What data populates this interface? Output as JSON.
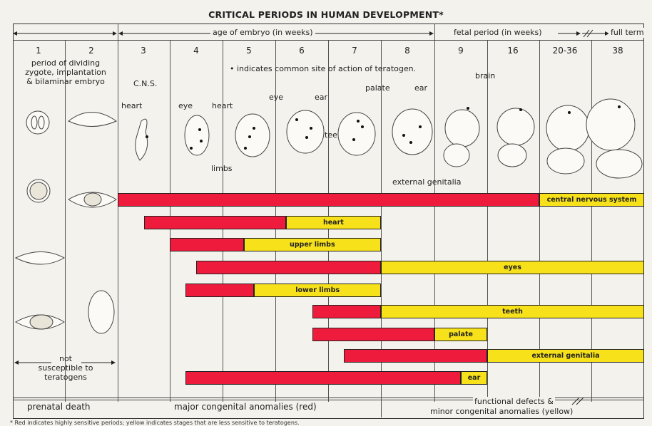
{
  "title": "CRITICAL PERIODS IN HUMAN DEVELOPMENT*",
  "header": {
    "age_of_embryo": "age of embryo (in weeks)",
    "fetal_period": "fetal period (in weeks)",
    "full_term": "full term"
  },
  "weeks": [
    "1",
    "2",
    "3",
    "4",
    "5",
    "6",
    "7",
    "8",
    "9",
    "16",
    "20-36",
    "38"
  ],
  "early_note": "period of dividing\nzygote, implantation\n& bilaminar embryo",
  "teratogen_note": "• indicates common site of action of teratogen.",
  "organ_labels": {
    "cns": "C.N.S.",
    "heart3": "heart",
    "eye4": "eye",
    "heart5": "heart",
    "eye5": "eye",
    "ear6": "ear",
    "teeth": "teeth",
    "palate": "palate",
    "ear8": "ear",
    "brain": "brain",
    "limbs": "limbs",
    "external_genitalia": "external genitalia"
  },
  "not_susceptible": "not\nsusceptible to\nteratogens",
  "bars": [
    {
      "label": "central nervous system",
      "red_start_week": 3,
      "red_end_week": "20-36",
      "yellow_end_week": 38
    },
    {
      "label": "heart",
      "red_start_week": 3.5,
      "red_end_week": 6.2,
      "yellow_end_week": 8
    },
    {
      "label": "upper limbs",
      "red_start_week": 4,
      "red_end_week": 5.4,
      "yellow_end_week": 8
    },
    {
      "label": "eyes",
      "red_start_week": 4.5,
      "red_end_week": 8,
      "yellow_end_week": 38
    },
    {
      "label": "lower limbs",
      "red_start_week": 4.3,
      "red_end_week": 5.6,
      "yellow_end_week": 8
    },
    {
      "label": "teeth",
      "red_start_week": 6.7,
      "red_end_week": 8,
      "yellow_end_week": 38
    },
    {
      "label": "palate",
      "red_start_week": 6.7,
      "red_end_week": 9,
      "yellow_end_week": 16
    },
    {
      "label": "external genitalia",
      "red_start_week": 7.3,
      "red_end_week": 16,
      "yellow_end_week": 38
    },
    {
      "label": "ear",
      "red_start_week": 4.3,
      "red_end_week": 9.5,
      "yellow_end_week": 16
    }
  ],
  "footer": {
    "prenatal_death": "prenatal death",
    "major": "major congenital anomalies (red)",
    "functional1": "functional defects &",
    "functional2": "minor congenital anomalies (yellow)"
  },
  "footnote": "* Red indicates highly sensitive periods; yellow indicates stages that are less sensitive to teratogens.",
  "colors": {
    "red": "#ee1b3c",
    "yellow": "#f6e11a"
  }
}
